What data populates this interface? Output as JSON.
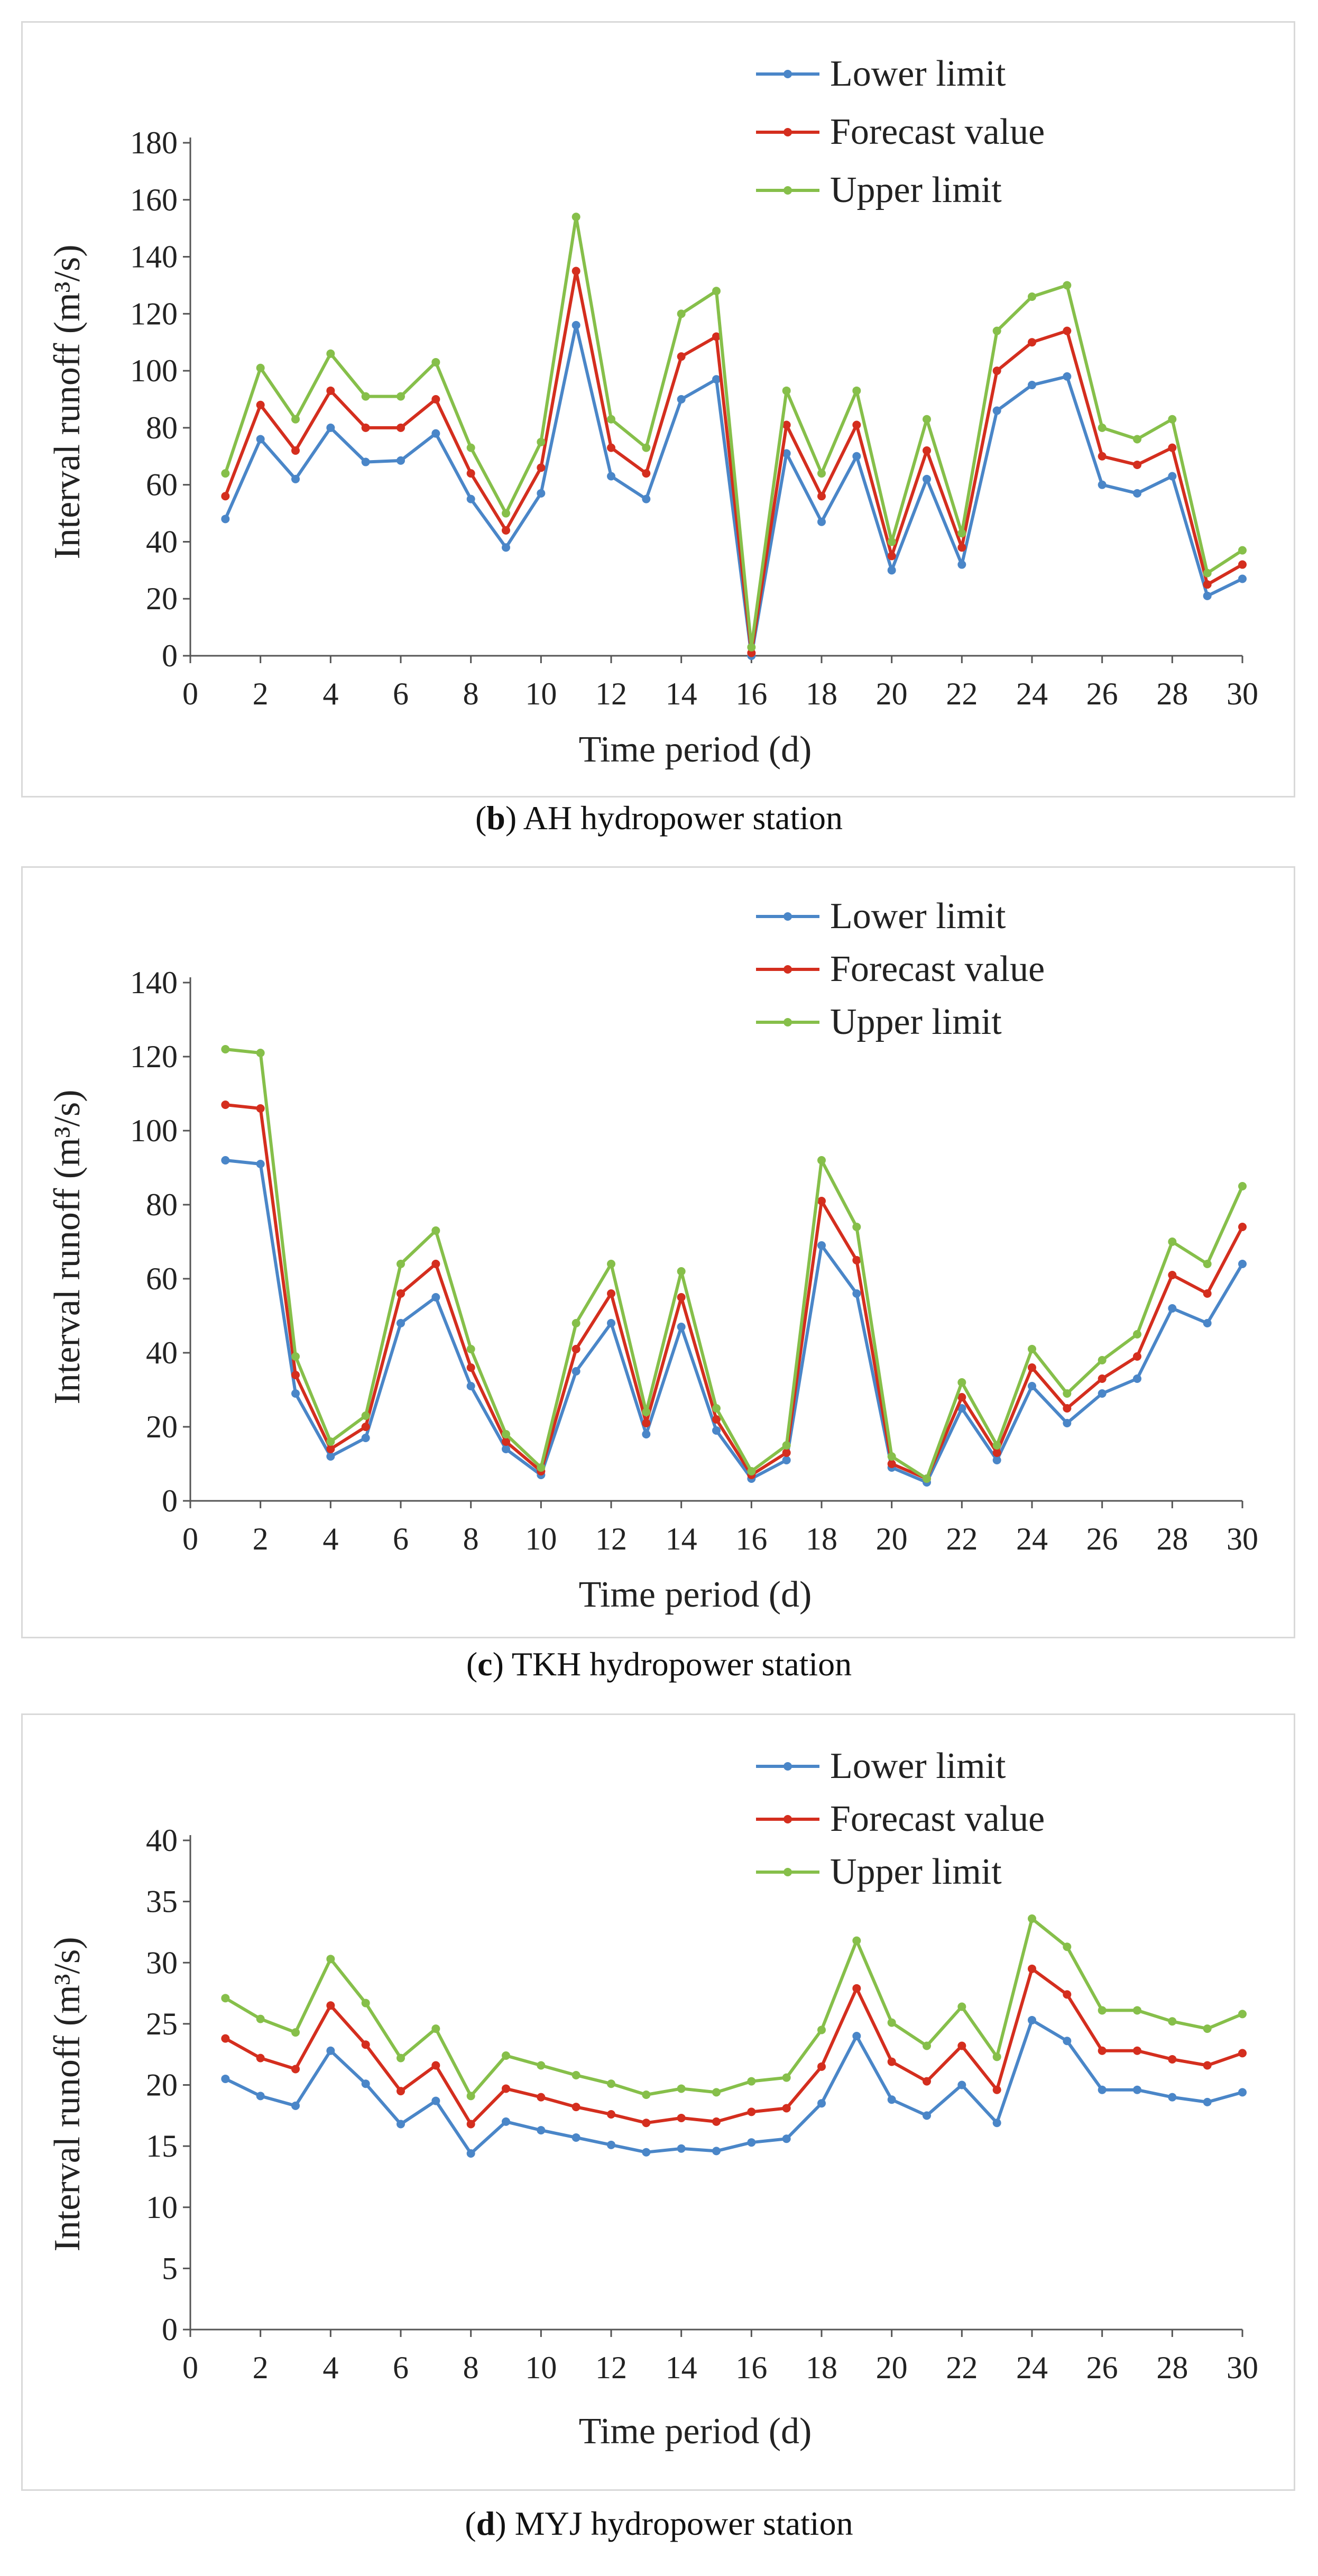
{
  "chart_data": [
    {
      "type": "line",
      "title": "",
      "caption_letter": "b",
      "caption_text": "AH hydropower station",
      "xlabel": "Time period (d)",
      "ylabel": "Interval runoff (m³/s)",
      "xlim": [
        0,
        30
      ],
      "ylim": [
        0,
        180
      ],
      "xticks": [
        "0",
        "2",
        "4",
        "6",
        "8",
        "10",
        "12",
        "14",
        "16",
        "18",
        "20",
        "22",
        "24",
        "26",
        "28",
        "30"
      ],
      "yticks": [
        "0",
        "20",
        "40",
        "60",
        "80",
        "100",
        "120",
        "140",
        "160",
        "180"
      ],
      "x": [
        1,
        2,
        3,
        4,
        5,
        6,
        7,
        8,
        9,
        10,
        11,
        12,
        13,
        14,
        15,
        16,
        17,
        18,
        19,
        20,
        21,
        22,
        23,
        24,
        25,
        26,
        27,
        28,
        29,
        30
      ],
      "legend_position": "top-right",
      "series": [
        {
          "name": "Lower limit",
          "color": "#4a86c8",
          "values": [
            48,
            76,
            62,
            80,
            68,
            68.5,
            78,
            55,
            38,
            57,
            116,
            63,
            55,
            90,
            97,
            0,
            71,
            47,
            70,
            30,
            62,
            32,
            86,
            95,
            98,
            60,
            57,
            63,
            21,
            27
          ]
        },
        {
          "name": "Forecast value",
          "color": "#d42e1e",
          "values": [
            56,
            88,
            72,
            93,
            80,
            80,
            90,
            64,
            44,
            66,
            135,
            73,
            64,
            105,
            112,
            1,
            81,
            56,
            81,
            35,
            72,
            38,
            100,
            110,
            114,
            70,
            67,
            73,
            25,
            32
          ]
        },
        {
          "name": "Upper limit",
          "color": "#86bf4a",
          "values": [
            64,
            101,
            83,
            106,
            91,
            91,
            103,
            73,
            50,
            75,
            154,
            83,
            73,
            120,
            128,
            3,
            93,
            64,
            93,
            40,
            83,
            43,
            114,
            126,
            130,
            80,
            76,
            83,
            29,
            37
          ]
        }
      ]
    },
    {
      "type": "line",
      "title": "",
      "caption_letter": "c",
      "caption_text": "TKH hydropower station",
      "xlabel": "Time period (d)",
      "ylabel": "Interval runoff (m³/s)",
      "xlim": [
        0,
        30
      ],
      "ylim": [
        0,
        140
      ],
      "xticks": [
        "0",
        "2",
        "4",
        "6",
        "8",
        "10",
        "12",
        "14",
        "16",
        "18",
        "20",
        "22",
        "24",
        "26",
        "28",
        "30"
      ],
      "yticks": [
        "0",
        "20",
        "40",
        "60",
        "80",
        "100",
        "120",
        "140"
      ],
      "x": [
        1,
        2,
        3,
        4,
        5,
        6,
        7,
        8,
        9,
        10,
        11,
        12,
        13,
        14,
        15,
        16,
        17,
        18,
        19,
        20,
        21,
        22,
        23,
        24,
        25,
        26,
        27,
        28,
        29,
        30
      ],
      "legend_position": "top-right",
      "series": [
        {
          "name": "Lower limit",
          "color": "#4a86c8",
          "values": [
            92,
            91,
            29,
            12,
            17,
            48,
            55,
            31,
            14,
            7,
            35,
            48,
            18,
            47,
            19,
            6,
            11,
            69,
            56,
            9,
            5,
            25,
            11,
            31,
            21,
            29,
            33,
            52,
            48,
            64
          ]
        },
        {
          "name": "Forecast value",
          "color": "#d42e1e",
          "values": [
            107,
            106,
            34,
            14,
            20,
            56,
            64,
            36,
            16,
            8,
            41,
            56,
            21,
            55,
            22,
            7,
            13,
            81,
            65,
            10,
            6,
            28,
            13,
            36,
            25,
            33,
            39,
            61,
            56,
            74
          ]
        },
        {
          "name": "Upper limit",
          "color": "#86bf4a",
          "values": [
            122,
            121,
            39,
            16,
            23,
            64,
            73,
            41,
            18,
            9,
            48,
            64,
            24,
            62,
            25,
            8,
            15,
            92,
            74,
            12,
            6,
            32,
            15,
            41,
            29,
            38,
            45,
            70,
            64,
            85
          ]
        }
      ]
    },
    {
      "type": "line",
      "title": "",
      "caption_letter": "d",
      "caption_text": "MYJ hydropower station",
      "xlabel": "Time period (d)",
      "ylabel": "Interval runoff (m³/s)",
      "xlim": [
        0,
        30
      ],
      "ylim": [
        0,
        40
      ],
      "xticks": [
        "0",
        "2",
        "4",
        "6",
        "8",
        "10",
        "12",
        "14",
        "16",
        "18",
        "20",
        "22",
        "24",
        "26",
        "28",
        "30"
      ],
      "yticks": [
        "0",
        "5",
        "10",
        "15",
        "20",
        "25",
        "30",
        "35",
        "40"
      ],
      "x": [
        1,
        2,
        3,
        4,
        5,
        6,
        7,
        8,
        9,
        10,
        11,
        12,
        13,
        14,
        15,
        16,
        17,
        18,
        19,
        20,
        21,
        22,
        23,
        24,
        25,
        26,
        27,
        28,
        29,
        30
      ],
      "legend_position": "top-right",
      "series": [
        {
          "name": "Lower limit",
          "color": "#4a86c8",
          "values": [
            20.5,
            19.1,
            18.3,
            22.8,
            20.1,
            16.8,
            18.7,
            14.4,
            17,
            16.3,
            15.7,
            15.1,
            14.5,
            14.8,
            14.6,
            15.3,
            15.6,
            18.5,
            24,
            18.8,
            17.5,
            20,
            16.9,
            25.3,
            23.6,
            19.6,
            19.6,
            19,
            18.6,
            19.4
          ]
        },
        {
          "name": "Forecast value",
          "color": "#d42e1e",
          "values": [
            23.8,
            22.2,
            21.3,
            26.5,
            23.3,
            19.5,
            21.6,
            16.8,
            19.7,
            19,
            18.2,
            17.6,
            16.9,
            17.3,
            17,
            17.8,
            18.1,
            21.5,
            27.9,
            21.9,
            20.3,
            23.2,
            19.6,
            29.5,
            27.4,
            22.8,
            22.8,
            22.1,
            21.6,
            22.6
          ]
        },
        {
          "name": "Upper limit",
          "color": "#86bf4a",
          "values": [
            27.1,
            25.4,
            24.3,
            30.3,
            26.7,
            22.2,
            24.6,
            19.1,
            22.4,
            21.6,
            20.8,
            20.1,
            19.2,
            19.7,
            19.4,
            20.3,
            20.6,
            24.5,
            31.8,
            25.1,
            23.2,
            26.4,
            22.3,
            33.6,
            31.3,
            26.1,
            26.1,
            25.2,
            24.6,
            25.8
          ]
        }
      ]
    }
  ]
}
